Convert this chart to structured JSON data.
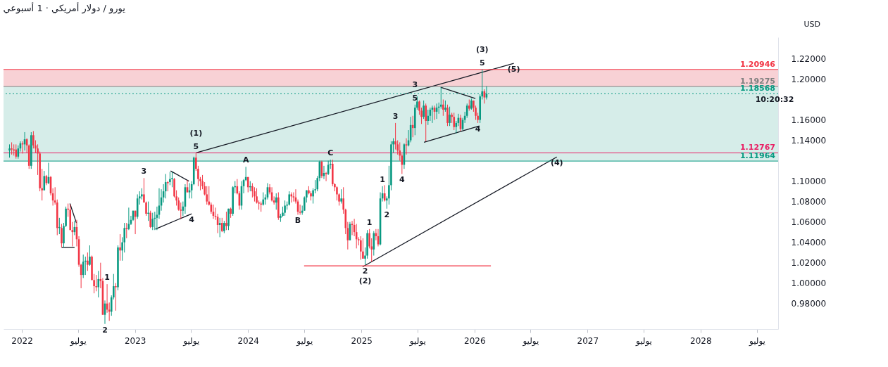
{
  "chart_data": {
    "type": "candlestick",
    "title": "يورو / دولار أمريكي · 1 أسبوعي",
    "x": [
      "2021-11-22",
      "2021-11-29",
      "2021-12-06",
      "2021-12-13",
      "2021-12-20",
      "2021-12-27",
      "2022-01-03",
      "2022-01-10",
      "2022-01-17",
      "2022-01-24",
      "2022-01-31",
      "2022-02-07",
      "2022-02-14",
      "2022-02-21",
      "2022-02-28",
      "2022-03-07",
      "2022-03-14",
      "2022-03-21",
      "2022-03-28",
      "2022-04-04",
      "2022-04-11",
      "2022-04-18",
      "2022-04-25",
      "2022-05-02",
      "2022-05-09",
      "2022-05-16",
      "2022-05-23",
      "2022-05-30",
      "2022-06-06",
      "2022-06-13",
      "2022-06-20",
      "2022-06-27",
      "2022-07-04",
      "2022-07-11",
      "2022-07-18",
      "2022-07-25",
      "2022-08-01",
      "2022-08-08",
      "2022-08-15",
      "2022-08-22",
      "2022-08-29",
      "2022-09-05",
      "2022-09-12",
      "2022-09-19",
      "2022-09-26",
      "2022-10-03",
      "2022-10-10",
      "2022-10-17",
      "2022-10-24",
      "2022-10-31",
      "2022-11-07",
      "2022-11-14",
      "2022-11-21",
      "2022-11-28",
      "2022-12-05",
      "2022-12-12",
      "2022-12-19",
      "2022-12-26",
      "2023-01-02",
      "2023-01-09",
      "2023-01-16",
      "2023-01-23",
      "2023-01-30",
      "2023-02-06",
      "2023-02-13",
      "2023-02-20",
      "2023-02-27",
      "2023-03-06",
      "2023-03-13",
      "2023-03-20",
      "2023-03-27",
      "2023-04-03",
      "2023-04-10",
      "2023-04-17",
      "2023-04-24",
      "2023-05-01",
      "2023-05-08",
      "2023-05-15",
      "2023-05-22",
      "2023-05-29",
      "2023-06-05",
      "2023-06-12",
      "2023-06-19",
      "2023-06-26",
      "2023-07-03",
      "2023-07-10",
      "2023-07-17",
      "2023-07-24",
      "2023-07-31",
      "2023-08-07",
      "2023-08-14",
      "2023-08-21",
      "2023-08-28",
      "2023-09-04",
      "2023-09-11",
      "2023-09-18",
      "2023-09-25",
      "2023-10-02",
      "2023-10-09",
      "2023-10-16",
      "2023-10-23",
      "2023-10-30",
      "2023-11-06",
      "2023-11-13",
      "2023-11-20",
      "2023-11-27",
      "2023-12-04",
      "2023-12-11",
      "2023-12-18",
      "2023-12-25",
      "2024-01-01",
      "2024-01-08",
      "2024-01-15",
      "2024-01-22",
      "2024-01-29",
      "2024-02-05",
      "2024-02-12",
      "2024-02-19",
      "2024-02-26",
      "2024-03-04",
      "2024-03-11",
      "2024-03-18",
      "2024-03-25",
      "2024-04-01",
      "2024-04-08",
      "2024-04-15",
      "2024-04-22",
      "2024-04-29",
      "2024-05-06",
      "2024-05-13",
      "2024-05-20",
      "2024-05-27",
      "2024-06-03",
      "2024-06-10",
      "2024-06-17",
      "2024-06-24",
      "2024-07-01",
      "2024-07-08",
      "2024-07-15",
      "2024-07-22",
      "2024-07-29",
      "2024-08-05",
      "2024-08-12",
      "2024-08-19",
      "2024-08-26",
      "2024-09-02",
      "2024-09-09",
      "2024-09-16",
      "2024-09-23",
      "2024-09-30",
      "2024-10-07",
      "2024-10-14",
      "2024-10-21",
      "2024-10-28",
      "2024-11-04",
      "2024-11-11",
      "2024-11-18",
      "2024-11-25",
      "2024-12-02",
      "2024-12-09",
      "2024-12-16",
      "2024-12-23",
      "2024-12-30",
      "2025-01-06",
      "2025-01-13",
      "2025-01-20",
      "2025-01-27",
      "2025-02-03",
      "2025-02-10",
      "2025-02-17",
      "2025-02-24",
      "2025-03-03",
      "2025-03-10",
      "2025-03-17",
      "2025-03-24",
      "2025-03-31",
      "2025-04-07",
      "2025-04-14",
      "2025-04-21",
      "2025-04-28",
      "2025-05-05",
      "2025-05-12",
      "2025-05-19",
      "2025-05-26",
      "2025-06-02",
      "2025-06-09",
      "2025-06-16",
      "2025-06-23",
      "2025-06-30",
      "2025-07-07",
      "2025-07-14",
      "2025-07-21",
      "2025-07-28",
      "2025-08-04",
      "2025-08-11",
      "2025-08-18",
      "2025-08-25",
      "2025-09-01",
      "2025-09-08",
      "2025-09-15",
      "2025-09-22",
      "2025-09-29",
      "2025-10-06",
      "2025-10-13",
      "2025-10-20",
      "2025-10-27",
      "2025-11-03",
      "2025-11-10",
      "2025-11-17",
      "2025-11-24",
      "2025-12-01",
      "2025-12-08",
      "2025-12-15",
      "2025-12-22",
      "2025-12-29",
      "2026-01-05",
      "2026-01-12",
      "2026-01-19",
      "2026-01-26",
      "2026-02-02",
      "2026-02-09"
    ],
    "ohlc": [
      [
        1.13,
        1.136,
        1.123,
        1.132
      ],
      [
        1.132,
        1.138,
        1.126,
        1.131
      ],
      [
        1.131,
        1.136,
        1.125,
        1.13
      ],
      [
        1.131,
        1.136,
        1.122,
        1.124
      ],
      [
        1.124,
        1.135,
        1.122,
        1.132
      ],
      [
        1.132,
        1.139,
        1.129,
        1.137
      ],
      [
        1.137,
        1.139,
        1.127,
        1.136
      ],
      [
        1.136,
        1.148,
        1.13,
        1.141
      ],
      [
        1.141,
        1.142,
        1.128,
        1.135
      ],
      [
        1.135,
        1.136,
        1.112,
        1.115
      ],
      [
        1.115,
        1.148,
        1.112,
        1.145
      ],
      [
        1.145,
        1.149,
        1.132,
        1.135
      ],
      [
        1.135,
        1.14,
        1.128,
        1.132
      ],
      [
        1.132,
        1.136,
        1.106,
        1.127
      ],
      [
        1.127,
        1.129,
        1.09,
        1.093
      ],
      [
        1.093,
        1.112,
        1.081,
        1.091
      ],
      [
        1.091,
        1.11,
        1.091,
        1.105
      ],
      [
        1.105,
        1.106,
        1.096,
        1.098
      ],
      [
        1.098,
        1.118,
        1.097,
        1.104
      ],
      [
        1.104,
        1.105,
        1.086,
        1.088
      ],
      [
        1.088,
        1.093,
        1.076,
        1.081
      ],
      [
        1.081,
        1.094,
        1.077,
        1.079
      ],
      [
        1.079,
        1.082,
        1.047,
        1.054
      ],
      [
        1.054,
        1.064,
        1.048,
        1.055
      ],
      [
        1.054,
        1.058,
        1.035,
        1.039
      ],
      [
        1.039,
        1.059,
        1.035,
        1.056
      ],
      [
        1.056,
        1.075,
        1.055,
        1.073
      ],
      [
        1.073,
        1.078,
        1.065,
        1.072
      ],
      [
        1.072,
        1.077,
        1.052,
        1.052
      ],
      [
        1.052,
        1.06,
        1.036,
        1.05
      ],
      [
        1.05,
        1.061,
        1.047,
        1.055
      ],
      [
        1.055,
        1.062,
        1.036,
        1.043
      ],
      [
        1.043,
        1.046,
        1.016,
        1.018
      ],
      [
        1.018,
        1.019,
        0.995,
        1.008
      ],
      [
        1.008,
        1.028,
        1.005,
        1.021
      ],
      [
        1.021,
        1.026,
        1.008,
        1.022
      ],
      [
        1.022,
        1.03,
        1.012,
        1.018
      ],
      [
        1.018,
        1.037,
        1.017,
        1.026
      ],
      [
        1.026,
        1.027,
        1.003,
        1.003
      ],
      [
        1.003,
        1.009,
        0.99,
        0.997
      ],
      [
        0.997,
        1.008,
        0.992,
        0.996
      ],
      [
        0.996,
        1.012,
        0.986,
        1.004
      ],
      [
        1.004,
        1.02,
        0.995,
        1.002
      ],
      [
        1.002,
        1.005,
        0.969,
        0.969
      ],
      [
        0.969,
        0.983,
        0.96,
        0.98
      ],
      [
        0.98,
        0.999,
        0.971,
        0.974
      ],
      [
        0.974,
        0.981,
        0.963,
        0.972
      ],
      [
        0.972,
        0.988,
        0.968,
        0.986
      ],
      [
        0.986,
        1.009,
        0.984,
        0.997
      ],
      [
        0.997,
        1.0,
        0.973,
        0.996
      ],
      [
        0.996,
        1.037,
        0.993,
        1.035
      ],
      [
        1.035,
        1.048,
        1.022,
        1.032
      ],
      [
        1.032,
        1.045,
        1.022,
        1.04
      ],
      [
        1.04,
        1.059,
        1.03,
        1.054
      ],
      [
        1.054,
        1.059,
        1.044,
        1.053
      ],
      [
        1.053,
        1.074,
        1.052,
        1.058
      ],
      [
        1.058,
        1.066,
        1.057,
        1.062
      ],
      [
        1.062,
        1.071,
        1.061,
        1.071
      ],
      [
        1.071,
        1.071,
        1.048,
        1.065
      ],
      [
        1.065,
        1.087,
        1.063,
        1.083
      ],
      [
        1.083,
        1.09,
        1.077,
        1.085
      ],
      [
        1.085,
        1.093,
        1.082,
        1.087
      ],
      [
        1.087,
        1.103,
        1.079,
        1.079
      ],
      [
        1.079,
        1.08,
        1.066,
        1.068
      ],
      [
        1.068,
        1.08,
        1.061,
        1.069
      ],
      [
        1.069,
        1.071,
        1.054,
        1.055
      ],
      [
        1.055,
        1.069,
        1.052,
        1.063
      ],
      [
        1.063,
        1.07,
        1.052,
        1.064
      ],
      [
        1.064,
        1.075,
        1.052,
        1.067
      ],
      [
        1.067,
        1.093,
        1.063,
        1.076
      ],
      [
        1.076,
        1.092,
        1.071,
        1.084
      ],
      [
        1.084,
        1.097,
        1.079,
        1.09
      ],
      [
        1.09,
        1.107,
        1.083,
        1.099
      ],
      [
        1.099,
        1.1,
        1.09,
        1.098
      ],
      [
        1.099,
        1.109,
        1.096,
        1.102
      ],
      [
        1.102,
        1.109,
        1.094,
        1.103
      ],
      [
        1.102,
        1.103,
        1.084,
        1.085
      ],
      [
        1.085,
        1.091,
        1.076,
        1.081
      ],
      [
        1.081,
        1.084,
        1.071,
        1.072
      ],
      [
        1.072,
        1.079,
        1.063,
        1.071
      ],
      [
        1.071,
        1.08,
        1.066,
        1.075
      ],
      [
        1.075,
        1.097,
        1.068,
        1.094
      ],
      [
        1.094,
        1.101,
        1.089,
        1.089
      ],
      [
        1.089,
        1.098,
        1.083,
        1.091
      ],
      [
        1.091,
        1.1,
        1.083,
        1.097
      ],
      [
        1.097,
        1.124,
        1.096,
        1.123
      ],
      [
        1.123,
        1.1276,
        1.11,
        1.112
      ],
      [
        1.112,
        1.115,
        1.095,
        1.102
      ],
      [
        1.102,
        1.104,
        1.091,
        1.1
      ],
      [
        1.1,
        1.106,
        1.092,
        1.095
      ],
      [
        1.095,
        1.099,
        1.086,
        1.087
      ],
      [
        1.087,
        1.095,
        1.077,
        1.08
      ],
      [
        1.08,
        1.095,
        1.076,
        1.077
      ],
      [
        1.077,
        1.079,
        1.068,
        1.07
      ],
      [
        1.07,
        1.077,
        1.063,
        1.066
      ],
      [
        1.066,
        1.074,
        1.062,
        1.065
      ],
      [
        1.065,
        1.068,
        1.049,
        1.057
      ],
      [
        1.057,
        1.064,
        1.045,
        1.059
      ],
      [
        1.059,
        1.064,
        1.05,
        1.051
      ],
      [
        1.051,
        1.061,
        1.049,
        1.059
      ],
      [
        1.059,
        1.07,
        1.052,
        1.056
      ],
      [
        1.056,
        1.073,
        1.052,
        1.073
      ],
      [
        1.073,
        1.074,
        1.064,
        1.068
      ],
      [
        1.068,
        1.095,
        1.066,
        1.094
      ],
      [
        1.094,
        1.1,
        1.088,
        1.095
      ],
      [
        1.095,
        1.102,
        1.087,
        1.088
      ],
      [
        1.088,
        1.09,
        1.072,
        1.076
      ],
      [
        1.076,
        1.1,
        1.072,
        1.095
      ],
      [
        1.095,
        1.102,
        1.088,
        1.101
      ],
      [
        1.101,
        1.114,
        1.1,
        1.104
      ],
      [
        1.104,
        1.104,
        1.089,
        1.094
      ],
      [
        1.094,
        1.1,
        1.09,
        1.095
      ],
      [
        1.095,
        1.098,
        1.084,
        1.09
      ],
      [
        1.09,
        1.094,
        1.08,
        1.085
      ],
      [
        1.085,
        1.093,
        1.078,
        1.079
      ],
      [
        1.079,
        1.081,
        1.072,
        1.078
      ],
      [
        1.078,
        1.08,
        1.07,
        1.077
      ],
      [
        1.077,
        1.089,
        1.076,
        1.082
      ],
      [
        1.082,
        1.087,
        1.077,
        1.084
      ],
      [
        1.084,
        1.098,
        1.082,
        1.094
      ],
      [
        1.094,
        1.097,
        1.087,
        1.089
      ],
      [
        1.089,
        1.094,
        1.08,
        1.081
      ],
      [
        1.081,
        1.085,
        1.077,
        1.079
      ],
      [
        1.079,
        1.088,
        1.072,
        1.084
      ],
      [
        1.084,
        1.089,
        1.062,
        1.064
      ],
      [
        1.064,
        1.068,
        1.06,
        1.066
      ],
      [
        1.066,
        1.075,
        1.065,
        1.069
      ],
      [
        1.069,
        1.081,
        1.066,
        1.076
      ],
      [
        1.076,
        1.08,
        1.072,
        1.077
      ],
      [
        1.077,
        1.09,
        1.076,
        1.087
      ],
      [
        1.087,
        1.089,
        1.079,
        1.085
      ],
      [
        1.085,
        1.089,
        1.08,
        1.084
      ],
      [
        1.084,
        1.092,
        1.078,
        1.08
      ],
      [
        1.08,
        1.082,
        1.067,
        1.07
      ],
      [
        1.07,
        1.077,
        1.067,
        1.069
      ],
      [
        1.069,
        1.076,
        1.067,
        1.071
      ],
      [
        1.071,
        1.085,
        1.071,
        1.084
      ],
      [
        1.084,
        1.091,
        1.079,
        1.091
      ],
      [
        1.091,
        1.095,
        1.087,
        1.088
      ],
      [
        1.088,
        1.09,
        1.081,
        1.085
      ],
      [
        1.085,
        1.093,
        1.078,
        1.091
      ],
      [
        1.091,
        1.101,
        1.088,
        1.092
      ],
      [
        1.092,
        1.105,
        1.09,
        1.103
      ],
      [
        1.103,
        1.12,
        1.1,
        1.119
      ],
      [
        1.119,
        1.12,
        1.103,
        1.105
      ],
      [
        1.105,
        1.115,
        1.102,
        1.108
      ],
      [
        1.108,
        1.109,
        1.1,
        1.107
      ],
      [
        1.107,
        1.12,
        1.106,
        1.116
      ],
      [
        1.116,
        1.121,
        1.112,
        1.117
      ],
      [
        1.117,
        1.121,
        1.095,
        1.097
      ],
      [
        1.097,
        1.098,
        1.09,
        1.094
      ],
      [
        1.094,
        1.095,
        1.081,
        1.087
      ],
      [
        1.087,
        1.088,
        1.076,
        1.08
      ],
      [
        1.08,
        1.092,
        1.078,
        1.083
      ],
      [
        1.083,
        1.094,
        1.068,
        1.072
      ],
      [
        1.072,
        1.073,
        1.048,
        1.054
      ],
      [
        1.054,
        1.06,
        1.033,
        1.042
      ],
      [
        1.042,
        1.06,
        1.042,
        1.058
      ],
      [
        1.058,
        1.061,
        1.047,
        1.057
      ],
      [
        1.057,
        1.063,
        1.046,
        1.05
      ],
      [
        1.05,
        1.058,
        1.034,
        1.043
      ],
      [
        1.043,
        1.045,
        1.037,
        1.042
      ],
      [
        1.042,
        1.046,
        1.023,
        1.031
      ],
      [
        1.031,
        1.044,
        1.024,
        1.024
      ],
      [
        1.024,
        1.035,
        1.018,
        1.027
      ],
      [
        1.027,
        1.052,
        1.024,
        1.049
      ],
      [
        1.049,
        1.053,
        1.034,
        1.036
      ],
      [
        1.036,
        1.044,
        1.021,
        1.033
      ],
      [
        1.033,
        1.051,
        1.027,
        1.049
      ],
      [
        1.049,
        1.053,
        1.042,
        1.046
      ],
      [
        1.046,
        1.053,
        1.036,
        1.038
      ],
      [
        1.038,
        1.089,
        1.037,
        1.083
      ],
      [
        1.083,
        1.095,
        1.08,
        1.088
      ],
      [
        1.088,
        1.096,
        1.08,
        1.081
      ],
      [
        1.081,
        1.085,
        1.073,
        1.083
      ],
      [
        1.083,
        1.115,
        1.077,
        1.096
      ],
      [
        1.096,
        1.139,
        1.091,
        1.136
      ],
      [
        1.136,
        1.142,
        1.128,
        1.139
      ],
      [
        1.139,
        1.157,
        1.131,
        1.136
      ],
      [
        1.136,
        1.14,
        1.126,
        1.13
      ],
      [
        1.13,
        1.138,
        1.12,
        1.125
      ],
      [
        1.125,
        1.127,
        1.107,
        1.116
      ],
      [
        1.116,
        1.137,
        1.112,
        1.136
      ],
      [
        1.136,
        1.142,
        1.126,
        1.135
      ],
      [
        1.135,
        1.15,
        1.134,
        1.14
      ],
      [
        1.14,
        1.163,
        1.138,
        1.155
      ],
      [
        1.155,
        1.164,
        1.143,
        1.152
      ],
      [
        1.152,
        1.175,
        1.145,
        1.172
      ],
      [
        1.172,
        1.183,
        1.17,
        1.178
      ],
      [
        1.178,
        1.179,
        1.165,
        1.169
      ],
      [
        1.169,
        1.172,
        1.156,
        1.163
      ],
      [
        1.163,
        1.179,
        1.161,
        1.174
      ],
      [
        1.174,
        1.176,
        1.139,
        1.159
      ],
      [
        1.159,
        1.17,
        1.155,
        1.164
      ],
      [
        1.164,
        1.172,
        1.159,
        1.17
      ],
      [
        1.17,
        1.174,
        1.157,
        1.172
      ],
      [
        1.172,
        1.174,
        1.16,
        1.168
      ],
      [
        1.168,
        1.176,
        1.161,
        1.172
      ],
      [
        1.172,
        1.177,
        1.166,
        1.173
      ],
      [
        1.173,
        1.192,
        1.171,
        1.175
      ],
      [
        1.175,
        1.18,
        1.164,
        1.17
      ],
      [
        1.17,
        1.179,
        1.168,
        1.172
      ],
      [
        1.172,
        1.175,
        1.154,
        1.157
      ],
      [
        1.157,
        1.173,
        1.154,
        1.165
      ],
      [
        1.165,
        1.167,
        1.157,
        1.163
      ],
      [
        1.163,
        1.167,
        1.15,
        1.153
      ],
      [
        1.153,
        1.159,
        1.147,
        1.157
      ],
      [
        1.157,
        1.166,
        1.154,
        1.162
      ],
      [
        1.162,
        1.165,
        1.149,
        1.151
      ],
      [
        1.151,
        1.162,
        1.15,
        1.16
      ],
      [
        1.16,
        1.168,
        1.157,
        1.164
      ],
      [
        1.164,
        1.176,
        1.162,
        1.174
      ],
      [
        1.174,
        1.18,
        1.169,
        1.171
      ],
      [
        1.171,
        1.181,
        1.17,
        1.179
      ],
      [
        1.179,
        1.179,
        1.168,
        1.172
      ],
      [
        1.172,
        1.174,
        1.16,
        1.164
      ],
      [
        1.164,
        1.167,
        1.157,
        1.16
      ],
      [
        1.16,
        1.185,
        1.157,
        1.183
      ],
      [
        1.183,
        1.2095,
        1.18,
        1.188
      ],
      [
        1.188,
        1.19,
        1.176,
        1.182
      ],
      [
        1.182,
        1.193,
        1.18,
        1.1857
      ]
    ],
    "series": [
      {
        "type": "line",
        "color": "#131722",
        "x": [
          "2023-07-17",
          "2026-05-08"
        ],
        "values": [
          1.1277,
          1.2154
        ]
      },
      {
        "type": "line",
        "color": "#131722",
        "x": [
          "2025-01-05",
          "2026-09-24"
        ],
        "values": [
          1.016,
          1.1237
        ]
      },
      {
        "type": "line",
        "color": "#131722",
        "x": [
          "2023-04-26",
          "2023-06-24"
        ],
        "values": [
          1.11,
          1.1
        ]
      },
      {
        "type": "line",
        "color": "#131722",
        "x": [
          "2023-03-08",
          "2023-07-03"
        ],
        "values": [
          1.053,
          1.068
        ]
      },
      {
        "type": "line",
        "color": "#131722",
        "x": [
          "2025-09-14",
          "2026-01-04"
        ],
        "values": [
          1.192,
          1.181
        ]
      },
      {
        "type": "line",
        "color": "#131722",
        "x": [
          "2025-07-22",
          "2026-01-17"
        ],
        "values": [
          1.138,
          1.154
        ]
      },
      {
        "type": "line",
        "color": "#131722",
        "x": [
          "2022-06-05",
          "2022-06-26"
        ],
        "values": [
          1.078,
          1.059
        ]
      },
      {
        "type": "line",
        "color": "#131722",
        "x": [
          "2022-05-09",
          "2022-06-20"
        ],
        "values": [
          1.035,
          1.035
        ]
      },
      {
        "type": "line",
        "color": "#f23645",
        "x": [
          "2024-06-30",
          "2026-02-23"
        ],
        "values": [
          1.017,
          1.017
        ]
      }
    ],
    "xlim": [
      "2021-11-14",
      "2028-08-27"
    ],
    "xticks": [
      {
        "value": "2022-01-01",
        "label": "2022"
      },
      {
        "value": "2022-07-01",
        "label": "يوليو"
      },
      {
        "value": "2023-01-01",
        "label": "2023"
      },
      {
        "value": "2023-07-01",
        "label": "يوليو"
      },
      {
        "value": "2024-01-01",
        "label": "2024"
      },
      {
        "value": "2024-07-01",
        "label": "يوليو"
      },
      {
        "value": "2025-01-01",
        "label": "2025"
      },
      {
        "value": "2025-07-01",
        "label": "يوليو"
      },
      {
        "value": "2026-01-01",
        "label": "2026"
      },
      {
        "value": "2026-07-01",
        "label": "يوليو"
      },
      {
        "value": "2027-01-01",
        "label": "2027"
      },
      {
        "value": "2027-07-01",
        "label": "يوليو"
      },
      {
        "value": "2028-01-01",
        "label": "2028"
      },
      {
        "value": "2028-07-01",
        "label": "يوليو"
      }
    ],
    "ylim": [
      0.955,
      1.241
    ],
    "yticks": [
      {
        "value": 0.98,
        "label": "0.98000"
      },
      {
        "value": 1.0,
        "label": "1.00000"
      },
      {
        "value": 1.02,
        "label": "1.02000"
      },
      {
        "value": 1.04,
        "label": "1.04000"
      },
      {
        "value": 1.06,
        "label": "1.06000"
      },
      {
        "value": 1.08,
        "label": "1.08000"
      },
      {
        "value": 1.1,
        "label": "1.10000"
      },
      {
        "value": 1.14,
        "label": "1.14000"
      },
      {
        "value": 1.16,
        "label": "1.16000"
      },
      {
        "value": 1.2,
        "label": "1.20000"
      },
      {
        "value": 1.22,
        "label": "1.22000"
      }
    ],
    "bands": [
      {
        "axis": "y",
        "from": 1.19275,
        "to": 1.20946,
        "color": "#f7c9ce"
      },
      {
        "axis": "y",
        "from": 1.11964,
        "to": 1.19275,
        "color": "#cfeae5"
      }
    ],
    "ref_lines": [
      {
        "axis": "y",
        "value": 1.20946,
        "label": "1.20946",
        "color": "#f23645"
      },
      {
        "axis": "y",
        "value": 1.19275,
        "label": "1.19275",
        "color": "#808080"
      },
      {
        "axis": "y",
        "value": 1.18568,
        "label": "1.18568",
        "color": "#089981",
        "line_style": "dotted"
      },
      {
        "axis": "y",
        "value": 1.12767,
        "label": "1.12767",
        "color": "#e91e63"
      },
      {
        "axis": "y",
        "value": 1.11964,
        "label": "1.11964",
        "color": "#089981"
      }
    ],
    "annotations": [
      "USD",
      {
        "text": "10:20:32",
        "x": "2028-08-27",
        "y": 1.18568
      },
      {
        "text": "5",
        "x": "2023-07-17",
        "y": 1.1276
      },
      {
        "text": "(1)",
        "x": "2023-07-17",
        "y": 1.1276
      },
      {
        "text": "3",
        "x": "2023-01-30",
        "y": 1.103
      },
      {
        "text": "4",
        "x": "2023-07-03",
        "y": 1.068
      },
      {
        "text": "1",
        "x": "2022-10-03",
        "y": 0.999
      },
      {
        "text": "2",
        "x": "2022-09-26",
        "y": 0.96
      },
      {
        "text": "A",
        "x": "2023-12-25",
        "y": 1.114
      },
      {
        "text": "B",
        "x": "2024-06-10",
        "y": 1.067
      },
      {
        "text": "C",
        "x": "2024-09-23",
        "y": 1.121
      },
      {
        "text": "1",
        "x": "2025-01-27",
        "y": 1.053
      },
      {
        "text": "2",
        "x": "2025-01-13",
        "y": 1.018
      },
      {
        "text": "(2)",
        "x": "2025-01-13",
        "y": 1.018
      },
      {
        "text": "1",
        "x": "2025-03-10",
        "y": 1.095
      },
      {
        "text": "2",
        "x": "2025-03-24",
        "y": 1.073
      },
      {
        "text": "4",
        "x": "2025-05-12",
        "y": 1.107
      },
      {
        "text": "3",
        "x": "2025-04-21",
        "y": 1.157
      },
      {
        "text": "5",
        "x": "2025-06-23",
        "y": 1.175
      },
      {
        "text": "3",
        "x": "2025-06-23",
        "y": 1.175
      },
      {
        "text": "5",
        "x": "2026-01-26",
        "y": 1.2095
      },
      {
        "text": "(3)",
        "x": "2026-01-26",
        "y": 1.2095
      },
      {
        "text": "4",
        "x": "2026-01-12",
        "y": 1.157
      },
      {
        "text": "(4)",
        "x": "2026-09-24",
        "y": 1.1237
      },
      {
        "text": "(5)",
        "x": "2026-05-08",
        "y": 1.2154
      }
    ],
    "grid": false
  }
}
